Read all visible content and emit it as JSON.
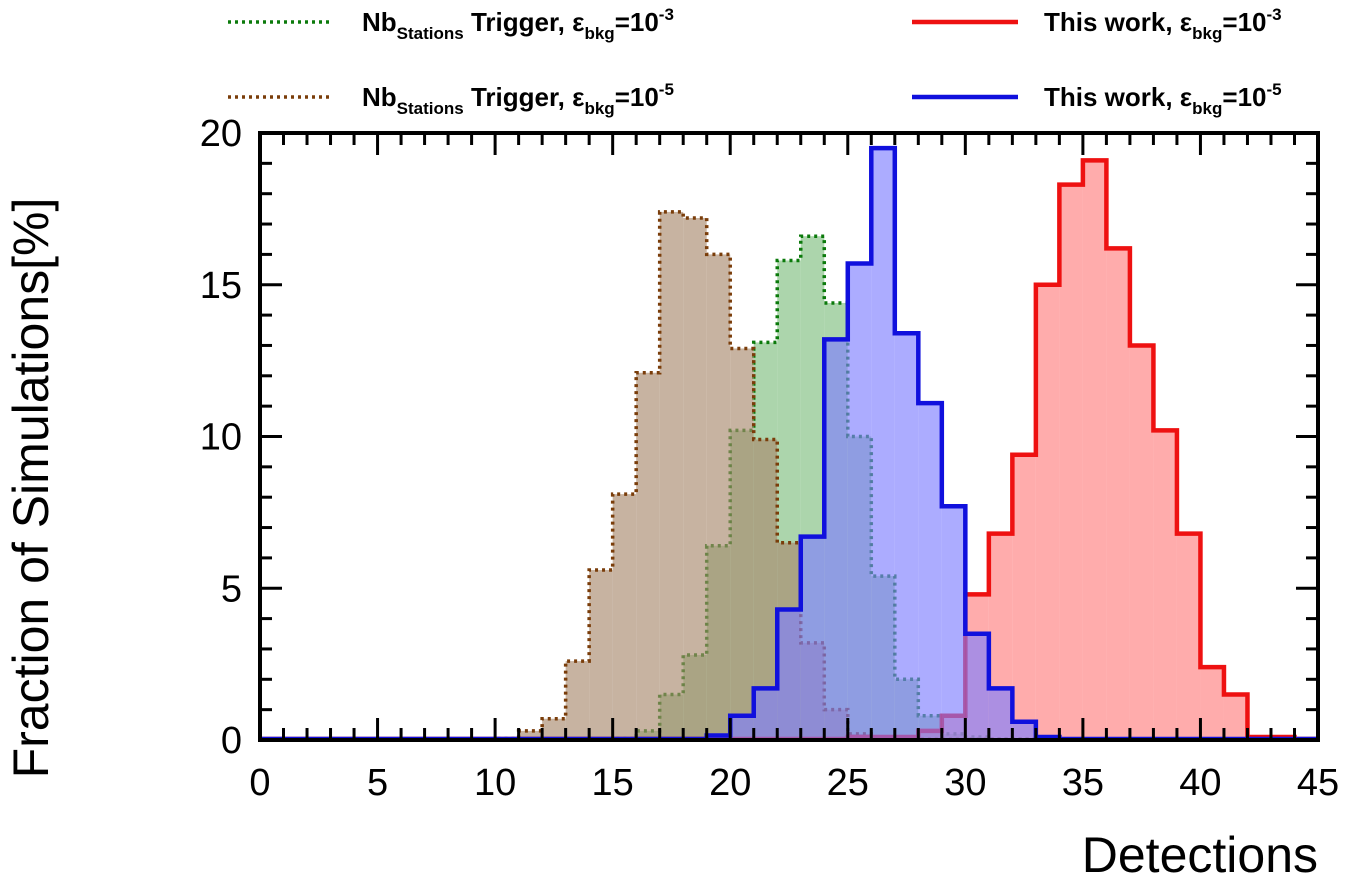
{
  "chart_data": {
    "type": "histogram",
    "xlabel": "Detections",
    "ylabel": "Fraction of Simulations[%]",
    "xlim": [
      0,
      45
    ],
    "ylim": [
      0,
      20
    ],
    "xticks": [
      0,
      5,
      10,
      15,
      20,
      25,
      30,
      35,
      40,
      45
    ],
    "yticks": [
      0,
      5,
      10,
      15,
      20
    ],
    "bin_width": 1,
    "legend_position": "top",
    "series": [
      {
        "name": "Nb_Stations Trigger, ε_bkg=10^-3",
        "legend": {
          "main": "Nb",
          "sub": "Stations",
          "mid": " Trigger, ε",
          "sub2": "bkg",
          "eq": "=10",
          "sup": "-3"
        },
        "color": "#0b7a0b",
        "fill": "#7fbf7f",
        "style": "dotted",
        "bin_edges_start": 15,
        "values": [
          0.05,
          0.3,
          1.5,
          2.8,
          6.4,
          10.2,
          13.1,
          15.8,
          16.6,
          14.4,
          10.0,
          5.4,
          2.0,
          0.8,
          0.2,
          0.1
        ]
      },
      {
        "name": "Nb_Stations Trigger, ε_bkg=10^-5",
        "legend": {
          "main": "Nb",
          "sub": "Stations",
          "mid": " Trigger, ε",
          "sub2": "bkg",
          "eq": "=10",
          "sup": "-5"
        },
        "color": "#7a3d0a",
        "fill": "#a98a6e",
        "style": "dotted",
        "bin_edges_start": 10,
        "values": [
          0.05,
          0.3,
          0.7,
          2.6,
          5.6,
          8.1,
          12.1,
          17.4,
          17.2,
          16.0,
          12.9,
          9.9,
          6.5,
          3.2,
          1.0,
          0.2,
          0.05
        ]
      },
      {
        "name": "This work, ε_bkg=10^-3",
        "legend": {
          "main": "This work, ε",
          "sub2": "bkg",
          "eq": "=10",
          "sup": "-3"
        },
        "color": "#ee1111",
        "fill": "#ff8080",
        "style": "solid",
        "bin_edges_start": 25,
        "values": [
          0.1,
          0.1,
          0.1,
          0.3,
          0.8,
          4.8,
          6.8,
          9.4,
          15.0,
          18.3,
          19.1,
          16.2,
          13.0,
          10.2,
          6.8,
          2.4,
          1.5,
          0.1,
          0.1
        ]
      },
      {
        "name": "This work, ε_bkg=10^-5",
        "legend": {
          "main": "This work, ε",
          "sub2": "bkg",
          "eq": "=10",
          "sup": "-5"
        },
        "color": "#1010dd",
        "fill": "#7f7fff",
        "style": "solid",
        "bin_edges_start": 19,
        "values": [
          0.15,
          0.8,
          1.7,
          4.3,
          6.7,
          13.2,
          15.7,
          19.5,
          13.4,
          11.1,
          7.7,
          3.5,
          1.7,
          0.6,
          0.1
        ]
      }
    ]
  }
}
